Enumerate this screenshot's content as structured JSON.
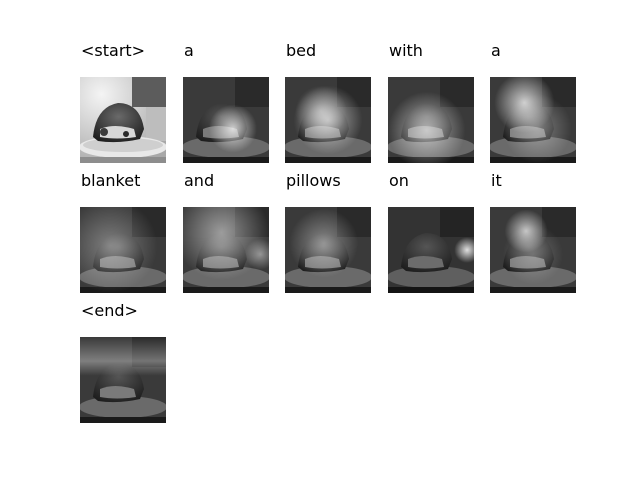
{
  "panels": [
    {
      "word": "<start>",
      "attention": null
    },
    {
      "word": "a",
      "attention": "right-center"
    },
    {
      "word": "bed",
      "attention": "center-right"
    },
    {
      "word": "with",
      "attention": "lower-center"
    },
    {
      "word": "a",
      "attention": "upper-center"
    },
    {
      "word": "blanket",
      "attention": "diffuse-left"
    },
    {
      "word": "and",
      "attention": "diffuse-top"
    },
    {
      "word": "pillows",
      "attention": "center"
    },
    {
      "word": "on",
      "attention": "right"
    },
    {
      "word": "it",
      "attention": "upper-center"
    },
    {
      "word": "<end>",
      "attention": "top-band"
    }
  ],
  "colors": {
    "background": "#ffffff",
    "text": "#000000"
  }
}
